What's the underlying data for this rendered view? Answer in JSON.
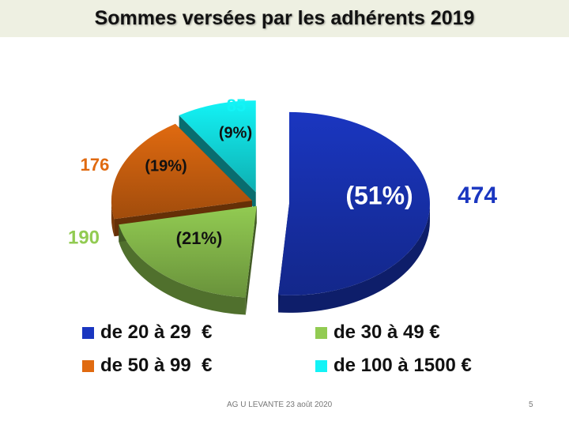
{
  "title": "Sommes versées par les adhérents 2019",
  "chart_data": {
    "type": "pie",
    "style": "3d-exploded",
    "title": "Sommes versées par les adhérents 2019",
    "slices": [
      {
        "label": "de 20 à 29  €",
        "value": 474,
        "percent_label": "(51%)",
        "color": "#1a36c0"
      },
      {
        "label": "de 30 à 49 €",
        "value": 190,
        "percent_label": "(21%)",
        "color": "#92cb52"
      },
      {
        "label": "de 50 à 99  €",
        "value": 176,
        "percent_label": "(19%)",
        "color": "#e06a10"
      },
      {
        "label": "de 100 à 1500 €",
        "value": 85,
        "percent_label": "(9%)",
        "color": "#13f3f6"
      }
    ],
    "legend_position": "bottom"
  },
  "footer": {
    "center": "AG U LEVANTE     23 août 2020",
    "page_number": "5"
  }
}
